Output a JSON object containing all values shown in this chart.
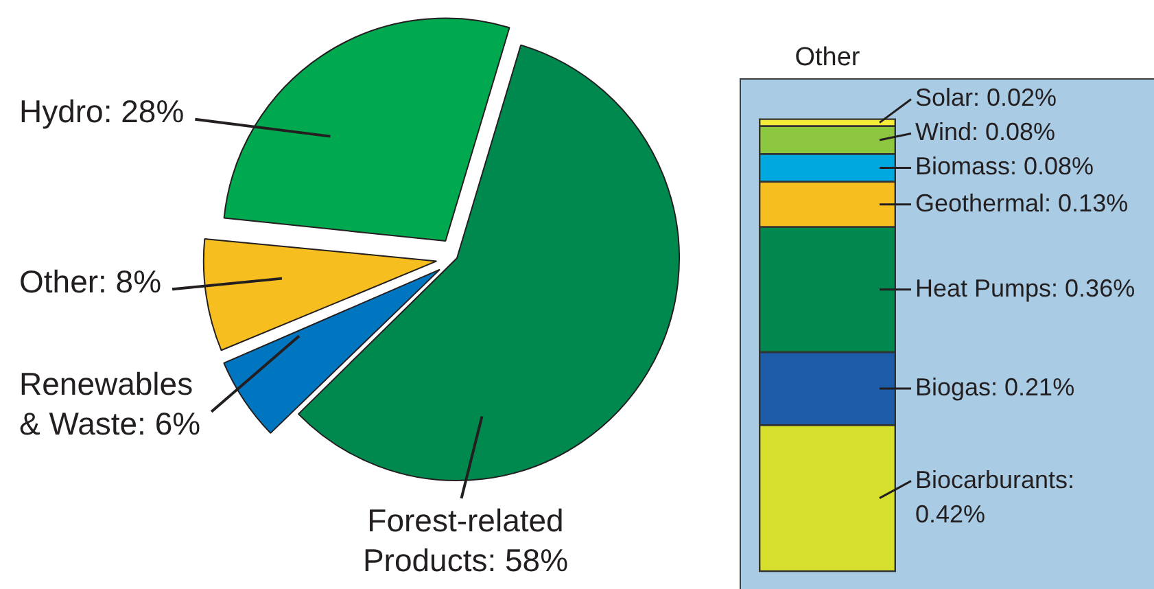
{
  "chart_data": [
    {
      "type": "pie",
      "categories": [
        "Forest-related Products",
        "Renewables & Waste",
        "Other",
        "Hydro"
      ],
      "values": [
        58,
        6,
        8,
        28
      ],
      "colors": [
        "#00894f",
        "#0076c0",
        "#f6be1f",
        "#00a94f"
      ],
      "value_labels": [
        "58%",
        "6%",
        "8%",
        "28%"
      ]
    },
    {
      "type": "bar",
      "title": "Other",
      "categories": [
        null
      ],
      "stacked": true,
      "tick_labels": false,
      "ylim": [
        0,
        1.3
      ],
      "series": [
        {
          "name": "Biocarburants:",
          "color": "#d7e02d",
          "values": [
            0.42
          ],
          "value_labels": [
            "0.42%"
          ]
        },
        {
          "name": "Biogas:",
          "color": "#1d5ca9",
          "values": [
            0.21
          ],
          "value_labels": [
            "0.21%"
          ]
        },
        {
          "name": "Heat Pumps:",
          "color": "#00884f",
          "values": [
            0.36
          ],
          "value_labels": [
            "0.36%"
          ]
        },
        {
          "name": "Geothermal:",
          "color": "#f6be1f",
          "values": [
            0.13
          ],
          "value_labels": [
            "0.13%"
          ]
        },
        {
          "name": "Biomass:",
          "color": "#00a8e0",
          "values": [
            0.08
          ],
          "value_labels": [
            "0.08%"
          ]
        },
        {
          "name": "Wind:",
          "color": "#8dc63f",
          "values": [
            0.08
          ],
          "value_labels": [
            "0.08%"
          ]
        },
        {
          "name": "Solar:",
          "color": "#f4ec38",
          "values": [
            0.02
          ],
          "value_labels": [
            "0.02%"
          ]
        }
      ]
    }
  ]
}
